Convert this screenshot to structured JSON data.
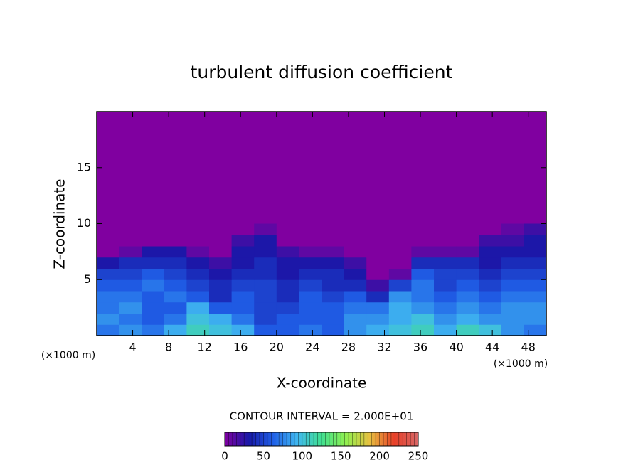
{
  "chart_data": {
    "type": "heatmap",
    "title": "turbulent diffusion coefficient",
    "xlabel": "X-coordinate",
    "ylabel": "Z-coordinate",
    "xunit": "(×1000 m)",
    "xunit2": "(×1000 m)",
    "annotation": "CONTOUR INTERVAL = 2.000E+01",
    "xlim": [
      0,
      50
    ],
    "xticks": [
      4,
      8,
      12,
      16,
      20,
      24,
      28,
      32,
      36,
      40,
      44,
      48
    ],
    "ylim": [
      0,
      20
    ],
    "yticks": [
      5,
      10,
      15
    ],
    "x": [
      1.25,
      3.75,
      6.25,
      8.75,
      11.25,
      13.75,
      16.25,
      18.75,
      21.25,
      23.75,
      26.25,
      28.75,
      31.25,
      33.75,
      36.25,
      38.75,
      41.25,
      43.75,
      46.25,
      48.75
    ],
    "y": [
      0.5,
      1.5,
      2.5,
      3.5,
      4.5,
      5.5,
      6.5,
      7.5,
      8.5,
      9.5
    ],
    "values": [
      [
        70,
        80,
        70,
        90,
        110,
        100,
        90,
        60,
        60,
        70,
        60,
        80,
        90,
        100,
        110,
        90,
        110,
        100,
        80,
        70
      ],
      [
        80,
        70,
        60,
        70,
        100,
        90,
        70,
        50,
        60,
        60,
        60,
        80,
        80,
        90,
        100,
        80,
        90,
        80,
        80,
        80
      ],
      [
        70,
        80,
        60,
        60,
        90,
        60,
        60,
        50,
        50,
        60,
        60,
        70,
        70,
        90,
        80,
        70,
        80,
        70,
        80,
        80
      ],
      [
        70,
        70,
        60,
        70,
        60,
        40,
        60,
        50,
        40,
        60,
        50,
        60,
        40,
        80,
        70,
        60,
        70,
        60,
        70,
        70
      ],
      [
        60,
        60,
        70,
        60,
        50,
        40,
        50,
        50,
        40,
        50,
        40,
        40,
        20,
        50,
        70,
        50,
        60,
        50,
        60,
        60
      ],
      [
        50,
        50,
        60,
        50,
        40,
        30,
        40,
        40,
        30,
        40,
        40,
        30,
        0,
        10,
        60,
        50,
        50,
        40,
        50,
        50
      ],
      [
        30,
        40,
        40,
        40,
        30,
        20,
        30,
        40,
        30,
        30,
        30,
        20,
        0,
        0,
        40,
        40,
        40,
        30,
        40,
        40
      ],
      [
        0,
        10,
        30,
        30,
        10,
        0,
        30,
        30,
        20,
        10,
        10,
        0,
        0,
        0,
        10,
        10,
        10,
        30,
        30,
        30
      ],
      [
        0,
        0,
        0,
        0,
        0,
        0,
        20,
        30,
        0,
        0,
        0,
        0,
        0,
        0,
        0,
        0,
        0,
        20,
        20,
        30
      ],
      [
        0,
        0,
        0,
        0,
        0,
        0,
        0,
        10,
        0,
        0,
        0,
        0,
        0,
        0,
        0,
        0,
        0,
        0,
        10,
        20
      ]
    ],
    "clim": [
      0,
      250
    ],
    "cticks": [
      0,
      50,
      100,
      150,
      200,
      250
    ],
    "colorscale": [
      "#8000a0",
      "#1818a8",
      "#2060e8",
      "#40b8f0",
      "#40e090",
      "#90f050",
      "#e8c040",
      "#e84028",
      "#d86868"
    ]
  }
}
